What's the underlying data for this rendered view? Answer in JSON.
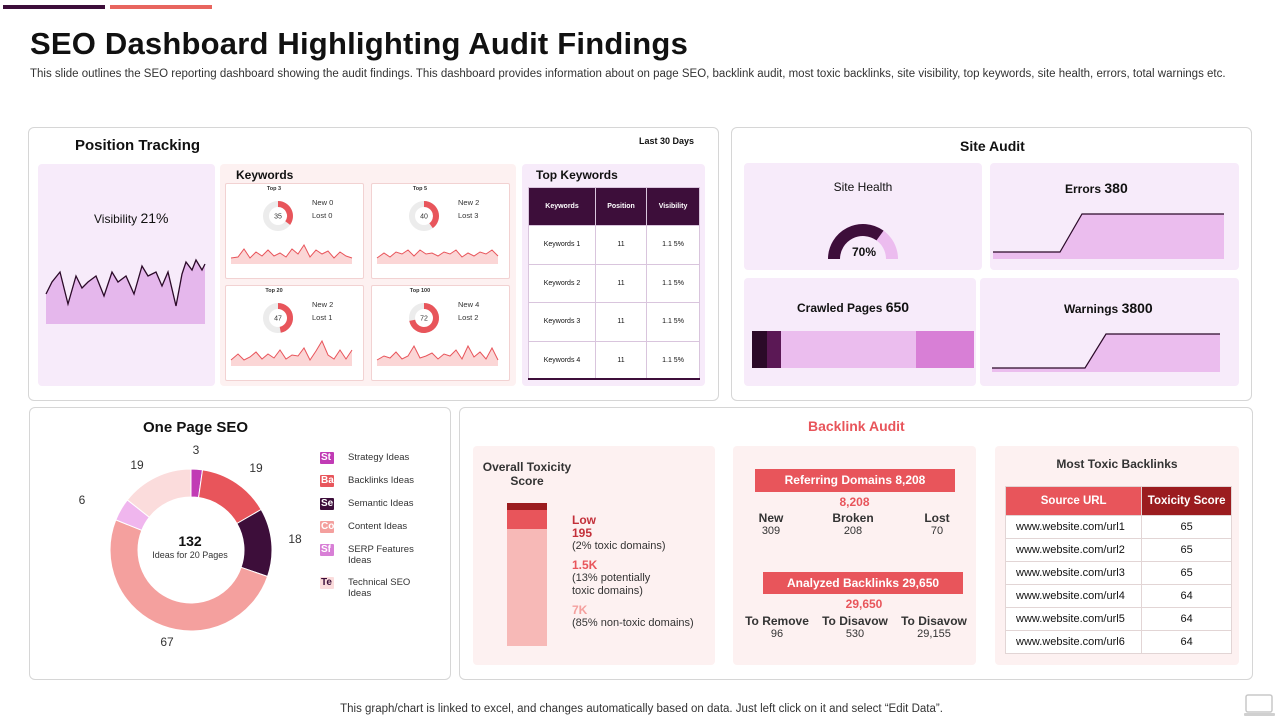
{
  "header": {
    "title": "SEO Dashboard Highlighting Audit Findings",
    "subtitle": "This slide outlines the SEO reporting dashboard showing the audit findings. This dashboard provides information about on page SEO, backlink audit, most toxic backlinks, site visibility, top keywords, site health, errors, total warnings etc."
  },
  "position_tracking": {
    "title": "Position Tracking",
    "period": "Last 30 Days",
    "visibility_label": "Visibility",
    "visibility_value": "21%"
  },
  "keywords": {
    "title": "Keywords",
    "tiles": [
      {
        "label": "Top 3",
        "value": "35",
        "pct": 35,
        "new": "New 0",
        "lost": "Lost 0"
      },
      {
        "label": "Top 5",
        "value": "40",
        "pct": 40,
        "new": "New 2",
        "lost": "Lost 3"
      },
      {
        "label": "Top 20",
        "value": "47",
        "pct": 47,
        "new": "New 2",
        "lost": "Lost 1"
      },
      {
        "label": "Top 100",
        "value": "72",
        "pct": 72,
        "new": "New 4",
        "lost": "Lost 2"
      }
    ]
  },
  "top_keywords": {
    "title": "Top Keywords",
    "columns": [
      "Keywords",
      "Position",
      "Visibility"
    ],
    "rows": [
      [
        "Keywords 1",
        "11",
        "1.1 5%"
      ],
      [
        "Keywords 2",
        "11",
        "1.1 5%"
      ],
      [
        "Keywords 3",
        "11",
        "1.1 5%"
      ],
      [
        "Keywords 4",
        "11",
        "1.1 5%"
      ]
    ]
  },
  "site_audit": {
    "title": "Site Audit",
    "site_health_label": "Site Health",
    "site_health_value": "70%",
    "site_health_pct": 70,
    "errors_label": "Errors",
    "errors_value": "380",
    "crawled_label": "Crawled Pages",
    "crawled_value": "650",
    "warnings_label": "Warnings",
    "warnings_value": "3800"
  },
  "one_page_seo": {
    "title": "One Page SEO",
    "total": "132",
    "total_caption": "Ideas for 20 Pages",
    "slices": [
      {
        "value": 3,
        "label": "3",
        "color": "#c13bb5"
      },
      {
        "value": 19,
        "label": "19",
        "color": "#e8555b"
      },
      {
        "value": 18,
        "label": "18",
        "color": "#3d0e3a"
      },
      {
        "value": 67,
        "label": "67",
        "color": "#f4a09e"
      },
      {
        "value": 6,
        "label": "6",
        "color": "#f0b6ee"
      },
      {
        "value": 19,
        "label": "19",
        "color": "#fbdcdc"
      }
    ],
    "legend": [
      {
        "abbr": "St",
        "label": "Strategy Ideas",
        "color": "#c13bb5"
      },
      {
        "abbr": "Ba",
        "label": "Backlinks Ideas",
        "color": "#e8555b"
      },
      {
        "abbr": "Se",
        "label": "Semantic Ideas",
        "color": "#3d0e3a"
      },
      {
        "abbr": "Co",
        "label": "Content Ideas",
        "color": "#f4a09e"
      },
      {
        "abbr": "Sf",
        "label": "SERP Features Ideas",
        "color": "#d87fd6"
      },
      {
        "abbr": "Te",
        "label": "Technical SEO Ideas",
        "color": "#fbdcdc"
      }
    ]
  },
  "backlink_audit": {
    "title": "Backlink Audit",
    "toxicity": {
      "title": "Overall Toxicity Score",
      "low_label": "Low",
      "low_value": "195",
      "low_note": "(2% toxic domains)",
      "mid_value": "1.5K",
      "mid_note": "(13% potentially toxic domains)",
      "high_value": "7K",
      "high_note": "(85% non-toxic domains)"
    },
    "referring": {
      "header": "Referring Domains 8,208",
      "value": "8,208",
      "cols": [
        {
          "label": "New",
          "value": "309"
        },
        {
          "label": "Broken",
          "value": "208"
        },
        {
          "label": "Lost",
          "value": "70"
        }
      ]
    },
    "analyzed": {
      "header": "Analyzed Backlinks 29,650",
      "value": "29,650",
      "cols": [
        {
          "label": "To Remove",
          "value": "96"
        },
        {
          "label": "To Disavow",
          "value": "530"
        },
        {
          "label": "To Disavow",
          "value": "29,155"
        }
      ]
    },
    "most_toxic": {
      "title": "Most Toxic Backlinks",
      "columns": [
        "Source URL",
        "Toxicity Score"
      ],
      "rows": [
        [
          "www.website.com/url1",
          "65"
        ],
        [
          "www.website.com/url2",
          "65"
        ],
        [
          "www.website.com/url3",
          "65"
        ],
        [
          "www.website.com/url4",
          "64"
        ],
        [
          "www.website.com/url5",
          "64"
        ],
        [
          "www.website.com/url6",
          "64"
        ]
      ]
    }
  },
  "footer": {
    "note": "This graph/chart is linked to excel, and changes automatically based on data. Just left click on it and select “Edit Data”."
  }
}
